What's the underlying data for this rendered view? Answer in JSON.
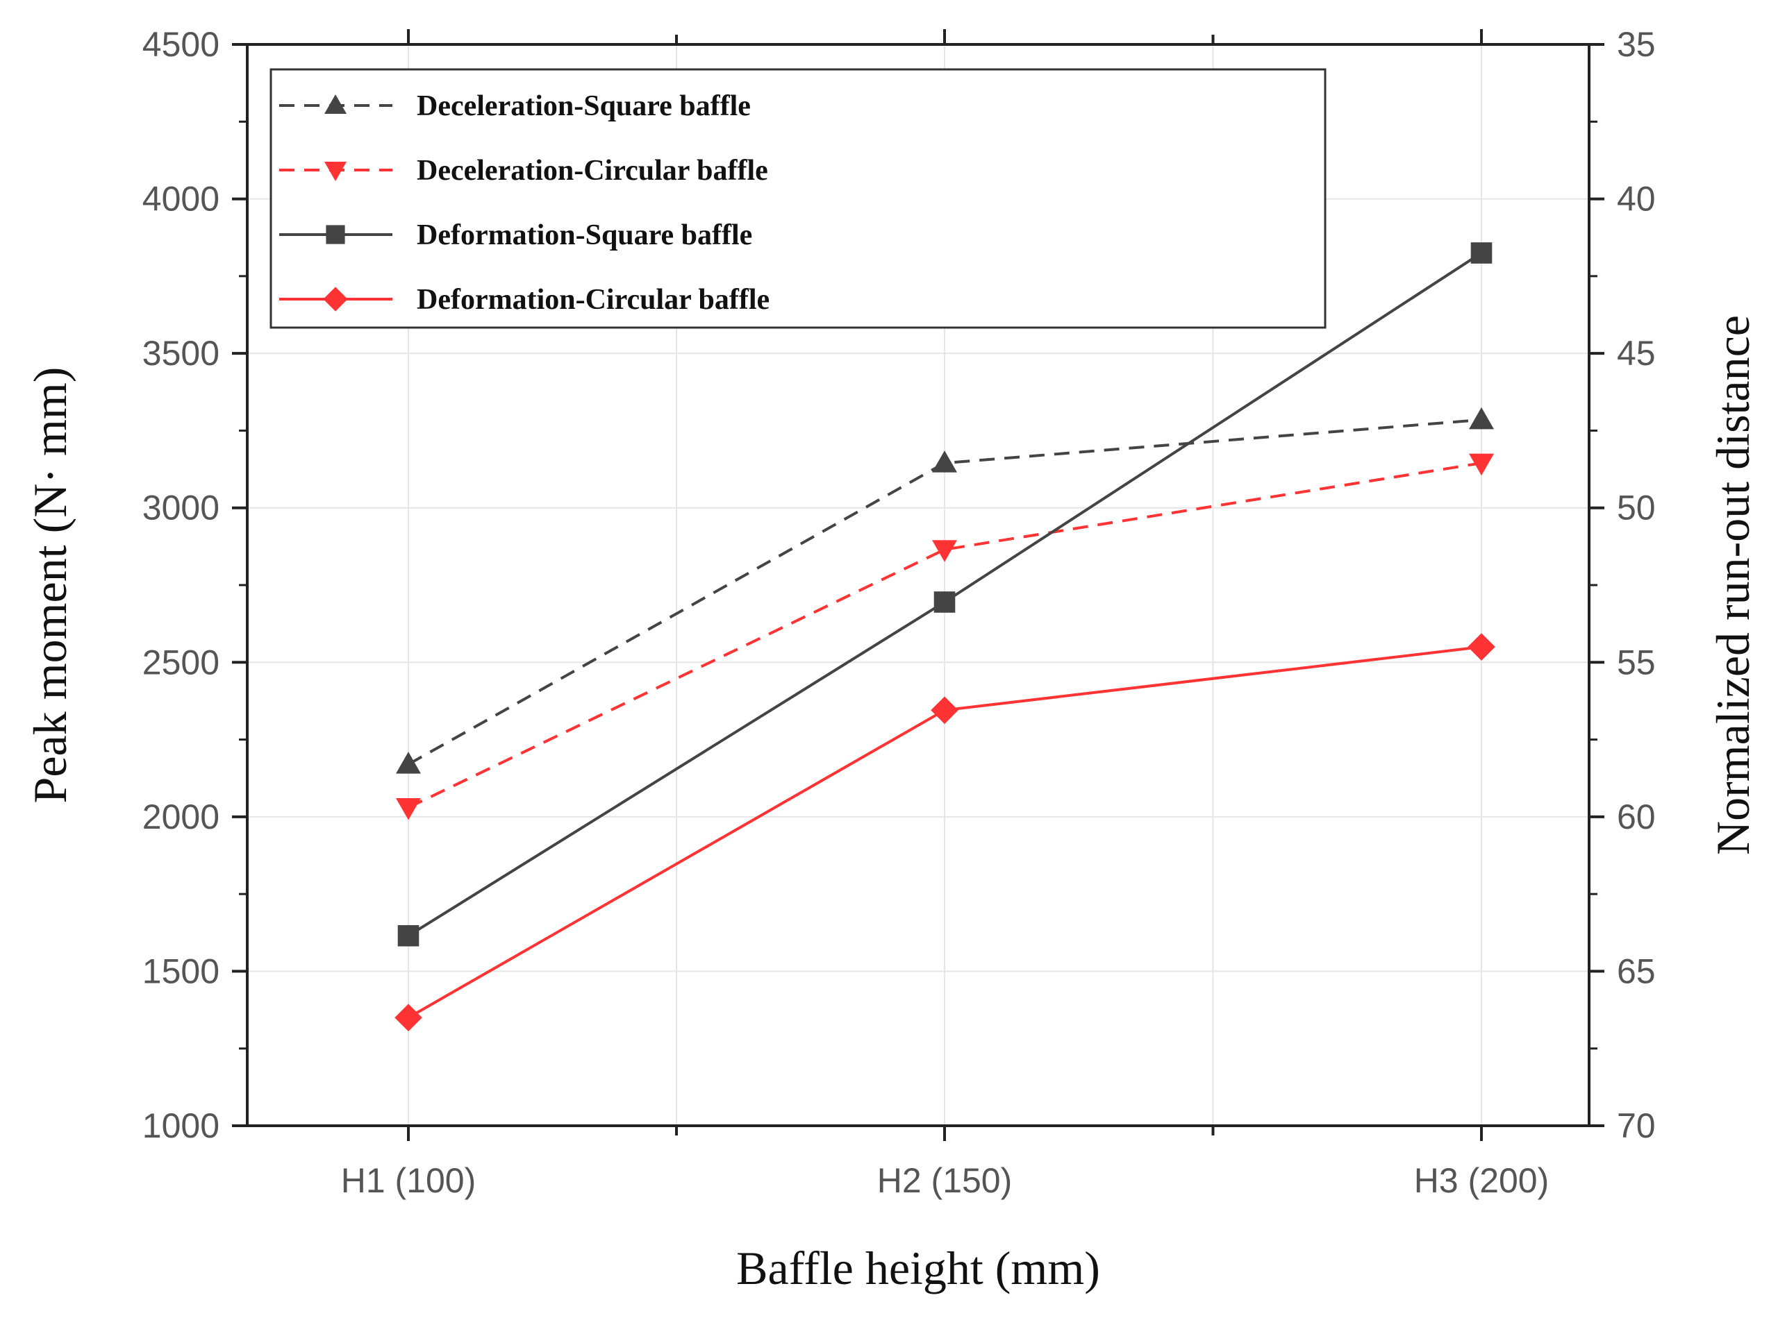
{
  "chart_data": {
    "type": "line",
    "xlabel": "Baffle height (mm)",
    "ylabel": "Peak moment (N· mm)",
    "y2label": "Normalized run-out distance",
    "categories": [
      "H1 (100)",
      "H2 (150)",
      "H3 (200)"
    ],
    "ylim": [
      1000,
      4500
    ],
    "yticks": [
      1000,
      1500,
      2000,
      2500,
      3000,
      3500,
      4000,
      4500
    ],
    "y2lim": [
      70,
      35
    ],
    "y2ticks": [
      35,
      40,
      45,
      50,
      55,
      60,
      65,
      70
    ],
    "y2_inverted": true,
    "grid": true,
    "legend_position": "top-left",
    "series": [
      {
        "name": "Deceleration-Square baffle",
        "values": [
          2170,
          3145,
          3285
        ],
        "color": "#444444",
        "line": "dashed",
        "marker": "triangle-up",
        "axis": "left"
      },
      {
        "name": "Deceleration-Circular baffle",
        "values": [
          2030,
          2865,
          3145
        ],
        "color": "#ff3333",
        "line": "dashed",
        "marker": "triangle-down",
        "axis": "left"
      },
      {
        "name": "Deformation-Square baffle",
        "values": [
          1615,
          2695,
          3825
        ],
        "color": "#444444",
        "line": "solid",
        "marker": "square",
        "axis": "left"
      },
      {
        "name": "Deformation-Circular baffle",
        "values": [
          1350,
          2345,
          2550
        ],
        "color": "#ff3333",
        "line": "solid",
        "marker": "diamond",
        "axis": "left"
      }
    ]
  }
}
